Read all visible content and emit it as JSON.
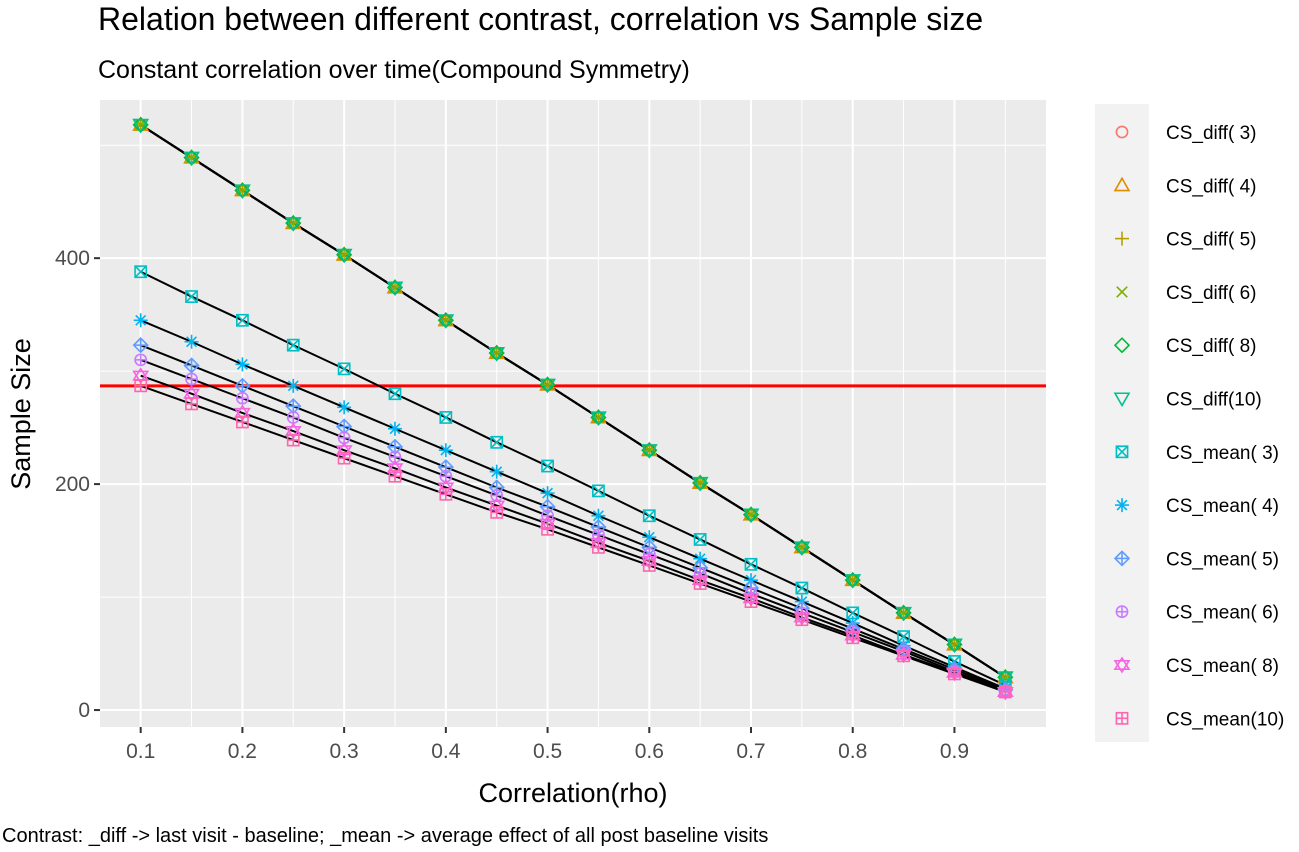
{
  "chart_data": {
    "type": "line",
    "title": "Relation between different contrast, correlation vs Sample size",
    "subtitle": "Constant correlation over time(Compound Symmetry)",
    "xlabel": "Correlation(rho)",
    "ylabel": "Sample Size",
    "caption": "Contrast: _diff -> last visit - baseline; _mean -> average effect of all post baseline visits",
    "xlim": [
      0.06,
      0.99
    ],
    "ylim": [
      -15,
      540
    ],
    "x_ticks": [
      0.1,
      0.2,
      0.3,
      0.4,
      0.5,
      0.6,
      0.7,
      0.8,
      0.9
    ],
    "x_tick_labels": [
      "0.1",
      "0.2",
      "0.3",
      "0.4",
      "0.5",
      "0.6",
      "0.7",
      "0.8",
      "0.9"
    ],
    "y_ticks": [
      0,
      200,
      400
    ],
    "y_tick_labels": [
      "0",
      "200",
      "400"
    ],
    "grid": true,
    "legend_position": "right",
    "reference_line": {
      "y": 287,
      "color": "#ff0000"
    },
    "x": [
      0.1,
      0.15,
      0.2,
      0.25,
      0.3,
      0.35,
      0.4,
      0.45,
      0.5,
      0.55,
      0.6,
      0.65,
      0.7,
      0.75,
      0.8,
      0.85,
      0.9,
      0.95
    ],
    "series": [
      {
        "name": "CS_diff( 3)",
        "color": "#F8766D",
        "shape": "circle",
        "values": [
          518,
          489,
          460,
          431,
          403,
          374,
          345,
          316,
          288,
          259,
          230,
          201,
          173,
          144,
          115,
          86,
          58,
          29
        ]
      },
      {
        "name": "CS_diff( 4)",
        "color": "#DE8C00",
        "shape": "triangle-up",
        "values": [
          518,
          489,
          460,
          431,
          403,
          374,
          345,
          316,
          288,
          259,
          230,
          201,
          173,
          144,
          115,
          86,
          58,
          29
        ]
      },
      {
        "name": "CS_diff( 5)",
        "color": "#B79F00",
        "shape": "plus",
        "values": [
          518,
          489,
          460,
          431,
          403,
          374,
          345,
          316,
          288,
          259,
          230,
          201,
          173,
          144,
          115,
          86,
          58,
          29
        ]
      },
      {
        "name": "CS_diff( 6)",
        "color": "#7CAE00",
        "shape": "cross",
        "values": [
          518,
          489,
          460,
          431,
          403,
          374,
          345,
          316,
          288,
          259,
          230,
          201,
          173,
          144,
          115,
          86,
          58,
          29
        ]
      },
      {
        "name": "CS_diff( 8)",
        "color": "#00BA38",
        "shape": "diamond",
        "values": [
          518,
          489,
          460,
          431,
          403,
          374,
          345,
          316,
          288,
          259,
          230,
          201,
          173,
          144,
          115,
          86,
          58,
          29
        ]
      },
      {
        "name": "CS_diff(10)",
        "color": "#00C08B",
        "shape": "triangle-down",
        "values": [
          518,
          489,
          460,
          431,
          403,
          374,
          345,
          316,
          288,
          259,
          230,
          201,
          173,
          144,
          115,
          86,
          58,
          29
        ]
      },
      {
        "name": "CS_mean( 3)",
        "color": "#00BFC4",
        "shape": "square-cross",
        "values": [
          388,
          366,
          345,
          323,
          302,
          280,
          259,
          237,
          216,
          194,
          172,
          151,
          129,
          108,
          86,
          65,
          43,
          22
        ]
      },
      {
        "name": "CS_mean( 4)",
        "color": "#00B4F0",
        "shape": "asterisk",
        "values": [
          345,
          326,
          306,
          287,
          268,
          249,
          230,
          211,
          192,
          172,
          153,
          134,
          115,
          96,
          77,
          57,
          38,
          19
        ]
      },
      {
        "name": "CS_mean( 5)",
        "color": "#619CFF",
        "shape": "diamond-plus",
        "values": [
          323,
          305,
          287,
          269,
          251,
          233,
          215,
          197,
          180,
          162,
          144,
          126,
          108,
          90,
          72,
          54,
          36,
          18
        ]
      },
      {
        "name": "CS_mean( 6)",
        "color": "#C77CFF",
        "shape": "circle-plus",
        "values": [
          310,
          293,
          276,
          259,
          241,
          224,
          207,
          190,
          172,
          155,
          138,
          121,
          103,
          86,
          69,
          52,
          34,
          17
        ]
      },
      {
        "name": "CS_mean( 8)",
        "color": "#F564E3",
        "shape": "star-of-david",
        "values": [
          296,
          280,
          263,
          247,
          230,
          214,
          197,
          181,
          165,
          148,
          132,
          115,
          99,
          82,
          66,
          49,
          33,
          16
        ]
      },
      {
        "name": "CS_mean(10)",
        "color": "#FF64B0",
        "shape": "square-plus",
        "values": [
          287,
          271,
          255,
          239,
          223,
          207,
          191,
          175,
          160,
          144,
          128,
          112,
          96,
          80,
          64,
          48,
          32,
          16
        ]
      }
    ]
  }
}
